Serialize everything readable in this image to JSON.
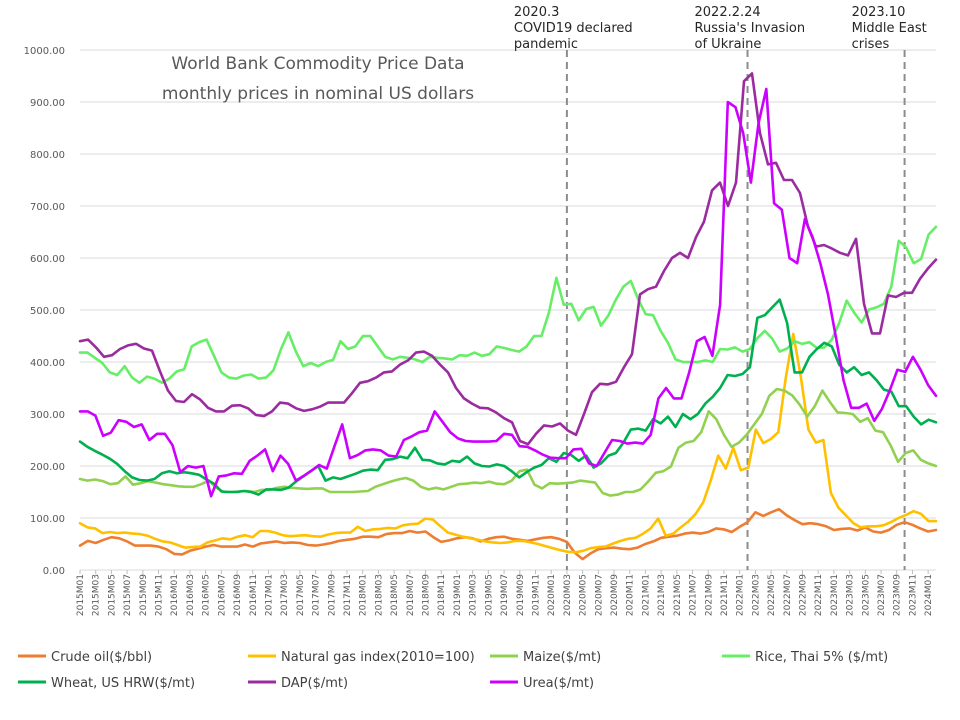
{
  "chart_data": {
    "type": "line",
    "title_lines": [
      "World Bank Commodity Price Data",
      "monthly prices in nominal US dollars"
    ],
    "ylim": [
      0,
      1000
    ],
    "y_ticks": [
      "0.00",
      "100.00",
      "200.00",
      "300.00",
      "400.00",
      "500.00",
      "600.00",
      "700.00",
      "800.00",
      "900.00",
      "1000.00"
    ],
    "x_labels": [
      "2015M01",
      "2015M03",
      "2015M05",
      "2015M07",
      "2015M09",
      "2015M11",
      "2016M01",
      "2016M03",
      "2016M05",
      "2016M07",
      "2016M09",
      "2016M11",
      "2017M01",
      "2017M03",
      "2017M05",
      "2017M07",
      "2017M09",
      "2017M11",
      "2018M01",
      "2018M03",
      "2018M05",
      "2018M07",
      "2018M09",
      "2018M11",
      "2019M01",
      "2019M03",
      "2019M05",
      "2019M07",
      "2019M09",
      "2019M11",
      "2020M01",
      "2020M03",
      "2020M05",
      "2020M07",
      "2020M09",
      "2020M11",
      "2021M01",
      "2021M03",
      "2021M05",
      "2021M07",
      "2021M09",
      "2021M11",
      "2022M01",
      "2022M03",
      "2022M05",
      "2022M07",
      "2022M09",
      "2022M11",
      "2023M01",
      "2023M03",
      "2023M05",
      "2023M07",
      "2023M09",
      "2023M11",
      "2024M01"
    ],
    "legend_position": "bottom",
    "grid": "horizontal",
    "events": [
      {
        "month": "2020M03",
        "lines": [
          "2020.3",
          "COVID19 declared",
          "pandemic"
        ]
      },
      {
        "month": "2022M02",
        "lines": [
          "2022.2.24",
          "Russia's Invasion",
          "of Ukraine"
        ]
      },
      {
        "month": "2023M10",
        "lines": [
          "2023.10",
          "Middle East",
          "crises"
        ]
      }
    ],
    "series": [
      {
        "name": "Crude oil($/bbl)",
        "color": "#ed7d31",
        "values": [
          47,
          56,
          52,
          58,
          63,
          61,
          55,
          47,
          47,
          47,
          45,
          40,
          31,
          30,
          37,
          41,
          45,
          48,
          45,
          45,
          45,
          49,
          45,
          51,
          53,
          55,
          52,
          53,
          52,
          48,
          47,
          49,
          52,
          56,
          58,
          60,
          64,
          64,
          63,
          69,
          71,
          71,
          75,
          72,
          74,
          63,
          54,
          57,
          61,
          63,
          61,
          55,
          60,
          63,
          64,
          60,
          58,
          56,
          59,
          62,
          63,
          60,
          54,
          33,
          21,
          32,
          40,
          42,
          43,
          41,
          40,
          43,
          50,
          55,
          62,
          64,
          66,
          70,
          72,
          70,
          73,
          80,
          78,
          73,
          83,
          92,
          111,
          104,
          111,
          117,
          105,
          96,
          88,
          90,
          88,
          84,
          77,
          79,
          80,
          76,
          82,
          74,
          72,
          77,
          87,
          92,
          87,
          80,
          74,
          77
        ]
      },
      {
        "name": "Natural gas index(2010=100)",
        "color": "#ffc000",
        "values": [
          90,
          82,
          80,
          71,
          73,
          71,
          72,
          70,
          69,
          66,
          60,
          55,
          53,
          48,
          43,
          44,
          45,
          53,
          57,
          61,
          59,
          64,
          67,
          63,
          75,
          75,
          72,
          67,
          65,
          66,
          67,
          65,
          64,
          68,
          71,
          72,
          72,
          83,
          75,
          78,
          79,
          81,
          80,
          86,
          88,
          89,
          99,
          97,
          84,
          72,
          68,
          64,
          61,
          58,
          55,
          53,
          52,
          53,
          56,
          56,
          53,
          50,
          46,
          42,
          38,
          35,
          34,
          37,
          42,
          44,
          45,
          51,
          56,
          60,
          62,
          70,
          80,
          99,
          66,
          70,
          82,
          93,
          108,
          130,
          172,
          220,
          195,
          235,
          192,
          197,
          270,
          244,
          252,
          265,
          370,
          454,
          372,
          270,
          245,
          250,
          148,
          120,
          105,
          90,
          82,
          84,
          84,
          86,
          92,
          100,
          106,
          113,
          108,
          94,
          94
        ]
      },
      {
        "name": "Maize($/mt)",
        "color": "#92d050",
        "values": [
          175,
          172,
          174,
          171,
          165,
          167,
          180,
          164,
          167,
          171,
          168,
          165,
          163,
          161,
          160,
          160,
          165,
          172,
          158,
          150,
          150,
          151,
          152,
          150,
          154,
          154,
          158,
          160,
          158,
          157,
          156,
          157,
          157,
          150,
          150,
          150,
          150,
          151,
          152,
          160,
          165,
          170,
          174,
          177,
          172,
          160,
          155,
          158,
          155,
          160,
          165,
          166,
          168,
          167,
          170,
          166,
          165,
          172,
          190,
          193,
          164,
          157,
          167,
          166,
          167,
          168,
          172,
          170,
          168,
          148,
          143,
          145,
          150,
          150,
          155,
          170,
          187,
          190,
          199,
          235,
          245,
          248,
          265,
          305,
          290,
          260,
          237,
          245,
          260,
          280,
          300,
          335,
          348,
          345,
          336,
          318,
          295,
          315,
          345,
          323,
          303,
          302,
          300,
          285,
          292,
          268,
          265,
          240,
          208,
          225,
          230,
          212,
          205,
          200
        ]
      },
      {
        "name": "Rice, Thai 5% ($/mt)",
        "color": "#66ee66",
        "values": [
          418,
          418,
          408,
          398,
          380,
          375,
          392,
          370,
          360,
          372,
          368,
          360,
          368,
          382,
          386,
          430,
          438,
          443,
          412,
          380,
          370,
          368,
          374,
          376,
          368,
          370,
          384,
          425,
          457,
          420,
          392,
          398,
          392,
          400,
          404,
          440,
          425,
          430,
          450,
          450,
          430,
          410,
          405,
          410,
          408,
          405,
          400,
          410,
          408,
          407,
          405,
          413,
          412,
          418,
          412,
          415,
          430,
          427,
          423,
          420,
          430,
          450,
          450,
          495,
          562,
          510,
          512,
          480,
          502,
          506,
          470,
          490,
          520,
          545,
          556,
          520,
          492,
          490,
          460,
          437,
          405,
          400,
          400,
          400,
          403,
          400,
          425,
          424,
          428,
          420,
          425,
          446,
          460,
          445,
          420,
          426,
          440,
          435,
          438,
          427,
          428,
          443,
          475,
          518,
          495,
          476,
          501,
          505,
          512,
          545,
          633,
          620,
          590,
          598,
          645,
          660
        ]
      },
      {
        "name": "Wheat, US HRW($/mt)",
        "color": "#00b050",
        "values": [
          247,
          237,
          229,
          222,
          214,
          204,
          190,
          178,
          173,
          172,
          175,
          186,
          190,
          186,
          188,
          186,
          183,
          174,
          166,
          151,
          150,
          150,
          152,
          150,
          145,
          155,
          155,
          154,
          158,
          170,
          180,
          190,
          200,
          172,
          178,
          175,
          180,
          185,
          191,
          193,
          192,
          212,
          213,
          218,
          215,
          235,
          212,
          211,
          205,
          203,
          210,
          208,
          218,
          205,
          200,
          199,
          203,
          200,
          190,
          178,
          188,
          197,
          202,
          215,
          208,
          225,
          221,
          210,
          220,
          197,
          205,
          220,
          225,
          245,
          270,
          272,
          268,
          290,
          282,
          295,
          275,
          300,
          290,
          300,
          320,
          333,
          350,
          375,
          373,
          377,
          390,
          485,
          490,
          505,
          520,
          475,
          380,
          380,
          410,
          425,
          437,
          430,
          395,
          380,
          390,
          375,
          380,
          365,
          347,
          343,
          315,
          315,
          295,
          280,
          289,
          284
        ]
      },
      {
        "name": "DAP($/mt)",
        "color": "#9b2ca0",
        "values": [
          440,
          443,
          428,
          410,
          413,
          425,
          432,
          435,
          426,
          422,
          382,
          345,
          325,
          323,
          338,
          328,
          312,
          305,
          305,
          316,
          317,
          311,
          298,
          296,
          305,
          322,
          320,
          311,
          306,
          309,
          314,
          322,
          322,
          322,
          340,
          360,
          363,
          370,
          380,
          382,
          395,
          403,
          418,
          420,
          412,
          395,
          380,
          350,
          330,
          320,
          312,
          311,
          303,
          292,
          284,
          248,
          242,
          262,
          278,
          276,
          282,
          268,
          260,
          300,
          342,
          358,
          357,
          362,
          390,
          415,
          530,
          540,
          545,
          575,
          600,
          610,
          600,
          640,
          670,
          730,
          745,
          700,
          745,
          940,
          955,
          840,
          780,
          783,
          750,
          750,
          725,
          660,
          622,
          625,
          618,
          610,
          605,
          637,
          512,
          455,
          455,
          528,
          525,
          533,
          533,
          560,
          580,
          597
        ]
      },
      {
        "name": "Urea($/mt)",
        "color": "#cc00ff",
        "values": [
          305,
          305,
          297,
          258,
          264,
          288,
          285,
          275,
          280,
          250,
          262,
          262,
          240,
          188,
          200,
          197,
          200,
          142,
          180,
          182,
          186,
          185,
          210,
          220,
          232,
          190,
          220,
          204,
          172,
          181,
          191,
          202,
          195,
          238,
          280,
          215,
          221,
          230,
          232,
          230,
          220,
          218,
          250,
          257,
          265,
          268,
          305,
          285,
          265,
          253,
          248,
          247,
          247,
          247,
          248,
          262,
          260,
          238,
          237,
          230,
          222,
          216,
          215,
          215,
          232,
          233,
          205,
          200,
          225,
          250,
          248,
          243,
          245,
          243,
          260,
          330,
          350,
          330,
          330,
          380,
          440,
          448,
          412,
          510,
          900,
          890,
          840,
          745,
          860,
          925,
          705,
          693,
          600,
          590,
          675,
          640,
          590,
          530,
          450,
          365,
          312,
          312,
          320,
          287,
          310,
          345,
          385,
          381,
          410,
          385,
          355,
          335
        ]
      }
    ]
  },
  "legend": [
    {
      "label": "Crude oil($/bbl)",
      "color": "#ed7d31"
    },
    {
      "label": "Natural gas index(2010=100)",
      "color": "#ffc000"
    },
    {
      "label": "Maize($/mt)",
      "color": "#92d050"
    },
    {
      "label": "Rice, Thai 5% ($/mt)",
      "color": "#66ee66"
    },
    {
      "label": "Wheat, US HRW($/mt)",
      "color": "#00b050"
    },
    {
      "label": "DAP($/mt)",
      "color": "#9b2ca0"
    },
    {
      "label": "Urea($/mt)",
      "color": "#cc00ff"
    }
  ]
}
